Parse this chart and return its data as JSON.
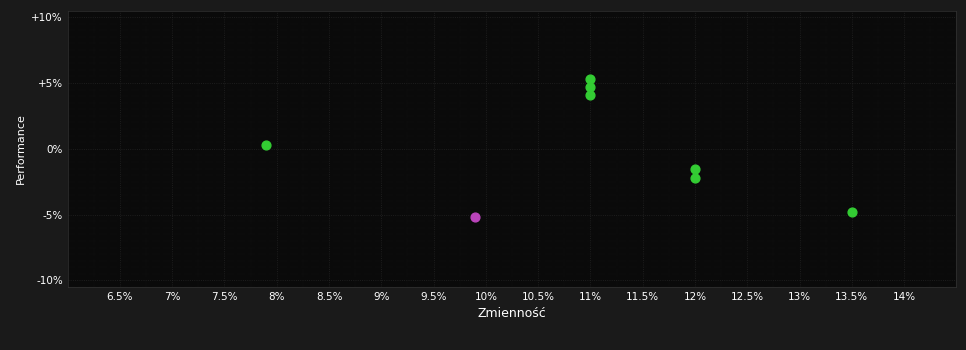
{
  "background_color": "#1a1a1a",
  "plot_bg_color": "#0a0a0a",
  "grid_color": "#2a2a2a",
  "minor_grid_color": "#222222",
  "text_color": "#ffffff",
  "xlabel": "Zmienność",
  "ylabel": "Performance",
  "xlim": [
    0.06,
    0.145
  ],
  "ylim": [
    -0.105,
    0.105
  ],
  "xticks": [
    0.065,
    0.07,
    0.075,
    0.08,
    0.085,
    0.09,
    0.095,
    0.1,
    0.105,
    0.11,
    0.115,
    0.12,
    0.125,
    0.13,
    0.135,
    0.14
  ],
  "yticks": [
    -0.1,
    -0.05,
    0.0,
    0.05,
    0.1
  ],
  "xtick_labels": [
    "6.5%",
    "7%",
    "7.5%",
    "8%",
    "8.5%",
    "9%",
    "9.5%",
    "10%",
    "10.5%",
    "11%",
    "11.5%",
    "12%",
    "12.5%",
    "13%",
    "13.5%",
    "14%"
  ],
  "ytick_labels": [
    "-10%",
    "-5%",
    "0%",
    "+5%",
    "+10%"
  ],
  "green_points": [
    [
      0.079,
      0.003
    ],
    [
      0.11,
      0.053
    ],
    [
      0.11,
      0.047
    ],
    [
      0.11,
      0.041
    ],
    [
      0.12,
      -0.015
    ],
    [
      0.12,
      -0.022
    ],
    [
      0.135,
      -0.048
    ]
  ],
  "magenta_points": [
    [
      0.099,
      -0.052
    ]
  ],
  "green_color": "#33cc33",
  "magenta_color": "#bb44bb",
  "marker_size": 40,
  "grid_linestyle": ":",
  "grid_linewidth": 0.6,
  "grid_alpha": 0.8
}
